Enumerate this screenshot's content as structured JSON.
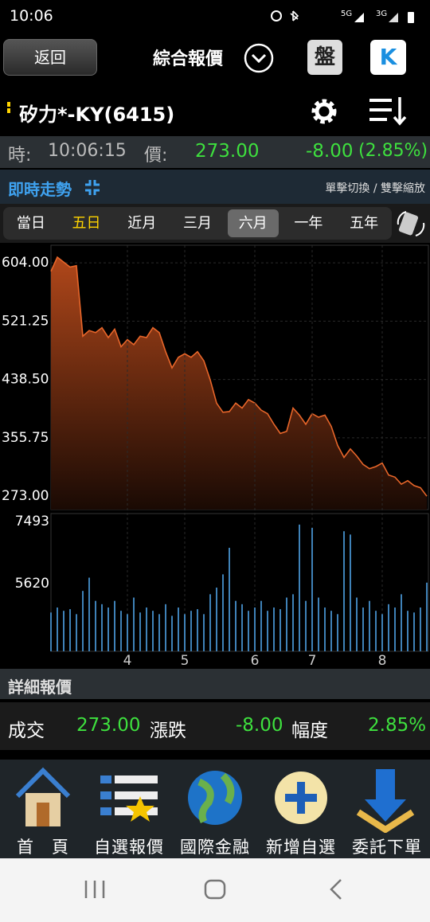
{
  "status": {
    "time": "10:06",
    "net1": "5G",
    "net2": "3G"
  },
  "header": {
    "back": "返回",
    "title": "綜合報價",
    "button1": "盤",
    "button2": "K"
  },
  "stock": {
    "name": "矽力*-KY(6415)"
  },
  "quote": {
    "time_label": "時:",
    "time": "10:06:15",
    "price_label": "價:",
    "price": "273.00",
    "change": "-8.00",
    "percent": "(2.85%)"
  },
  "section": {
    "title": "即時走勢",
    "hint": "單擊切換 / 雙擊縮放"
  },
  "tabs": {
    "items": [
      "當日",
      "五日",
      "近月",
      "三月",
      "六月",
      "一年",
      "五年"
    ],
    "active": 4,
    "highlight": 1
  },
  "chart_data": [
    {
      "type": "area",
      "color": "#e8662a",
      "categories": [
        null,
        null,
        null,
        null,
        null,
        null,
        null,
        null,
        null,
        null,
        null,
        null,
        "4",
        null,
        null,
        null,
        null,
        null,
        null,
        null,
        null,
        "5",
        null,
        null,
        null,
        null,
        null,
        null,
        null,
        null,
        null,
        null,
        "6",
        null,
        null,
        null,
        null,
        null,
        null,
        null,
        null,
        "7",
        null,
        null,
        null,
        null,
        null,
        null,
        null,
        null,
        null,
        null,
        "8",
        null,
        null,
        null,
        null,
        null,
        null,
        null
      ],
      "values": [
        592,
        612,
        605,
        598,
        600,
        500,
        508,
        505,
        512,
        498,
        510,
        485,
        495,
        488,
        500,
        498,
        512,
        505,
        478,
        455,
        470,
        475,
        470,
        478,
        465,
        438,
        405,
        392,
        393,
        405,
        398,
        410,
        405,
        395,
        390,
        375,
        362,
        365,
        398,
        388,
        375,
        390,
        385,
        388,
        372,
        345,
        328,
        340,
        330,
        318,
        312,
        315,
        320,
        303,
        300,
        290,
        295,
        288,
        285,
        273
      ],
      "ylim": [
        254,
        629
      ],
      "yticks": [
        {
          "value": 604,
          "label": "604.00"
        },
        {
          "value": 521.25,
          "label": "521.25"
        },
        {
          "value": 438.5,
          "label": "438.50"
        },
        {
          "value": 355.75,
          "label": "355.75"
        },
        {
          "value": 273,
          "label": "273.00"
        }
      ],
      "grid": true
    },
    {
      "type": "bar",
      "color": "#3f82b8",
      "values": [
        4750,
        4900,
        4800,
        4850,
        4700,
        5400,
        5800,
        5100,
        5000,
        4900,
        5100,
        4800,
        4700,
        5200,
        4750,
        4900,
        4800,
        4700,
        5000,
        4650,
        4900,
        4700,
        4800,
        4850,
        4700,
        5300,
        5500,
        5900,
        6700,
        5100,
        5000,
        4800,
        4900,
        5100,
        4800,
        4900,
        4850,
        5200,
        5300,
        7400,
        5100,
        7300,
        5200,
        4900,
        4800,
        4700,
        7200,
        7100,
        5200,
        4900,
        5100,
        4800,
        4700,
        5000,
        4900,
        5300,
        4800,
        4750,
        4900,
        5650
      ],
      "ylim": [
        3580,
        7493
      ],
      "yticks": [
        7493,
        5620
      ]
    }
  ],
  "detail": {
    "title": "詳細報價",
    "deal_label": "成交",
    "deal": "273.00",
    "change_label": "漲跌",
    "change": "-8.00",
    "range_label": "幅度",
    "range": "2.85%"
  },
  "nav": {
    "items": [
      "首　頁",
      "自選報價",
      "國際金融",
      "新增自選",
      "委託下單"
    ]
  }
}
